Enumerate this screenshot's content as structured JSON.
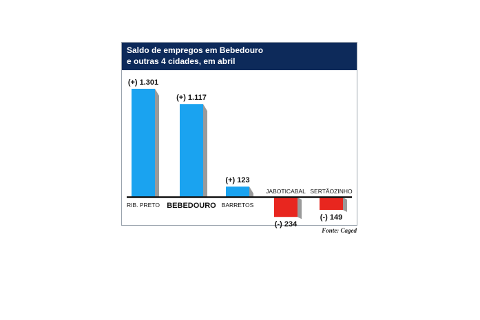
{
  "title_lines": [
    "Saldo de empregos em Bebedouro",
    "e outras 4 cidades, em abril"
  ],
  "source": "Fonte: Caged",
  "colors": {
    "title_bg": "#0d2a5a",
    "positive": "#1aa3f0",
    "negative": "#e8261f",
    "side_shadow": "#9a9a9a",
    "baseline": "#111111"
  },
  "chart_data": {
    "type": "bar",
    "title": "Saldo de empregos em Bebedouro e outras 4 cidades, em abril",
    "xlabel": "",
    "ylabel": "",
    "grid": false,
    "categories": [
      "RIB. PRETO",
      "BEBEDOURO",
      "BARRETOS",
      "JABOTICABAL",
      "SERTÃOZINHO"
    ],
    "values": [
      1301,
      1117,
      123,
      -234,
      -149
    ],
    "value_labels": [
      "(+) 1.301",
      "(+) 1.117",
      "(+) 123",
      "(-) 234",
      "(-) 149"
    ]
  }
}
